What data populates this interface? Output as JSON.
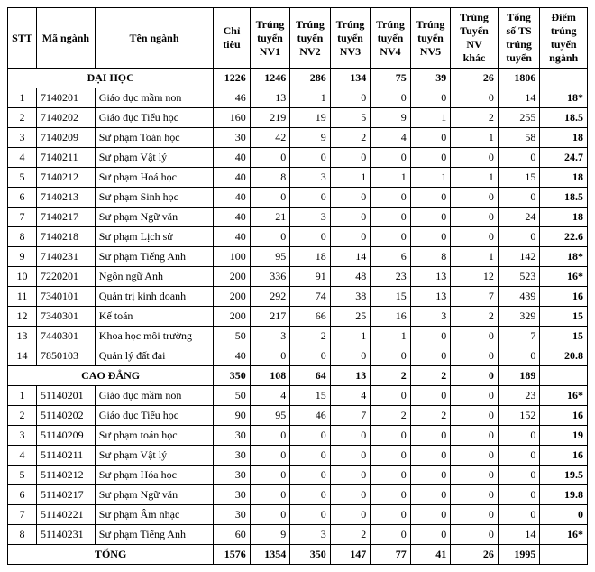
{
  "headers": {
    "stt": "STT",
    "ma": "Mã ngành",
    "ten": "Tên ngành",
    "chi": "Chỉ tiêu",
    "nv1": "Trúng tuyển NV1",
    "nv2": "Trúng tuyển NV2",
    "nv3": "Trúng tuyển NV3",
    "nv4": "Trúng tuyển NV4",
    "nv5": "Trúng tuyển NV5",
    "nvk": "Trúng Tuyển NV khác",
    "tong": "Tổng số TS trúng tuyển",
    "diem": "Điểm trúng tuyển ngành"
  },
  "section1": {
    "label": "ĐẠI HỌC",
    "chi": "1226",
    "nv1": "1246",
    "nv2": "286",
    "nv3": "134",
    "nv4": "75",
    "nv5": "39",
    "nvk": "26",
    "tong": "1806",
    "diem": ""
  },
  "dh": [
    {
      "stt": "1",
      "ma": "7140201",
      "ten": "Giáo dục mầm non",
      "chi": "46",
      "nv1": "13",
      "nv2": "1",
      "nv3": "0",
      "nv4": "0",
      "nv5": "0",
      "nvk": "0",
      "tong": "14",
      "diem": "18*"
    },
    {
      "stt": "2",
      "ma": "7140202",
      "ten": "Giáo dục Tiểu học",
      "chi": "160",
      "nv1": "219",
      "nv2": "19",
      "nv3": "5",
      "nv4": "9",
      "nv5": "1",
      "nvk": "2",
      "tong": "255",
      "diem": "18.5"
    },
    {
      "stt": "3",
      "ma": "7140209",
      "ten": "Sư phạm Toán học",
      "chi": "30",
      "nv1": "42",
      "nv2": "9",
      "nv3": "2",
      "nv4": "4",
      "nv5": "0",
      "nvk": "1",
      "tong": "58",
      "diem": "18"
    },
    {
      "stt": "4",
      "ma": "7140211",
      "ten": "Sư phạm Vật lý",
      "chi": "40",
      "nv1": "0",
      "nv2": "0",
      "nv3": "0",
      "nv4": "0",
      "nv5": "0",
      "nvk": "0",
      "tong": "0",
      "diem": "24.7"
    },
    {
      "stt": "5",
      "ma": "7140212",
      "ten": "Sư phạm Hoá học",
      "chi": "40",
      "nv1": "8",
      "nv2": "3",
      "nv3": "1",
      "nv4": "1",
      "nv5": "1",
      "nvk": "1",
      "tong": "15",
      "diem": "18"
    },
    {
      "stt": "6",
      "ma": "7140213",
      "ten": "Sư phạm Sinh học",
      "chi": "40",
      "nv1": "0",
      "nv2": "0",
      "nv3": "0",
      "nv4": "0",
      "nv5": "0",
      "nvk": "0",
      "tong": "0",
      "diem": "18.5"
    },
    {
      "stt": "7",
      "ma": "7140217",
      "ten": "Sư phạm Ngữ văn",
      "chi": "40",
      "nv1": "21",
      "nv2": "3",
      "nv3": "0",
      "nv4": "0",
      "nv5": "0",
      "nvk": "0",
      "tong": "24",
      "diem": "18"
    },
    {
      "stt": "8",
      "ma": "7140218",
      "ten": "Sư phạm Lịch sử",
      "chi": "40",
      "nv1": "0",
      "nv2": "0",
      "nv3": "0",
      "nv4": "0",
      "nv5": "0",
      "nvk": "0",
      "tong": "0",
      "diem": "22.6"
    },
    {
      "stt": "9",
      "ma": "7140231",
      "ten": "Sư phạm Tiếng Anh",
      "chi": "100",
      "nv1": "95",
      "nv2": "18",
      "nv3": "14",
      "nv4": "6",
      "nv5": "8",
      "nvk": "1",
      "tong": "142",
      "diem": "18*"
    },
    {
      "stt": "10",
      "ma": "7220201",
      "ten": "Ngôn ngữ Anh",
      "chi": "200",
      "nv1": "336",
      "nv2": "91",
      "nv3": "48",
      "nv4": "23",
      "nv5": "13",
      "nvk": "12",
      "tong": "523",
      "diem": "16*"
    },
    {
      "stt": "11",
      "ma": "7340101",
      "ten": "Quản trị kinh doanh",
      "chi": "200",
      "nv1": "292",
      "nv2": "74",
      "nv3": "38",
      "nv4": "15",
      "nv5": "13",
      "nvk": "7",
      "tong": "439",
      "diem": "16"
    },
    {
      "stt": "12",
      "ma": "7340301",
      "ten": "Kế toán",
      "chi": "200",
      "nv1": "217",
      "nv2": "66",
      "nv3": "25",
      "nv4": "16",
      "nv5": "3",
      "nvk": "2",
      "tong": "329",
      "diem": "15"
    },
    {
      "stt": "13",
      "ma": "7440301",
      "ten": "Khoa học môi trường",
      "chi": "50",
      "nv1": "3",
      "nv2": "2",
      "nv3": "1",
      "nv4": "1",
      "nv5": "0",
      "nvk": "0",
      "tong": "7",
      "diem": "15"
    },
    {
      "stt": "14",
      "ma": "7850103",
      "ten": "Quản lý đất đai",
      "chi": "40",
      "nv1": "0",
      "nv2": "0",
      "nv3": "0",
      "nv4": "0",
      "nv5": "0",
      "nvk": "0",
      "tong": "0",
      "diem": "20.8"
    }
  ],
  "section2": {
    "label": "CAO ĐẲNG",
    "chi": "350",
    "nv1": "108",
    "nv2": "64",
    "nv3": "13",
    "nv4": "2",
    "nv5": "2",
    "nvk": "0",
    "tong": "189",
    "diem": ""
  },
  "cd": [
    {
      "stt": "1",
      "ma": "51140201",
      "ten": "Giáo dục mầm non",
      "chi": "50",
      "nv1": "4",
      "nv2": "15",
      "nv3": "4",
      "nv4": "0",
      "nv5": "0",
      "nvk": "0",
      "tong": "23",
      "diem": "16*"
    },
    {
      "stt": "2",
      "ma": "51140202",
      "ten": "Giáo dục Tiểu học",
      "chi": "90",
      "nv1": "95",
      "nv2": "46",
      "nv3": "7",
      "nv4": "2",
      "nv5": "2",
      "nvk": "0",
      "tong": "152",
      "diem": "16"
    },
    {
      "stt": "3",
      "ma": "51140209",
      "ten": "Sư phạm toán học",
      "chi": "30",
      "nv1": "0",
      "nv2": "0",
      "nv3": "0",
      "nv4": "0",
      "nv5": "0",
      "nvk": "0",
      "tong": "0",
      "diem": "19"
    },
    {
      "stt": "4",
      "ma": "51140211",
      "ten": "Sư phạm Vật lý",
      "chi": "30",
      "nv1": "0",
      "nv2": "0",
      "nv3": "0",
      "nv4": "0",
      "nv5": "0",
      "nvk": "0",
      "tong": "0",
      "diem": "16"
    },
    {
      "stt": "5",
      "ma": "51140212",
      "ten": "Sư phạm Hóa học",
      "chi": "30",
      "nv1": "0",
      "nv2": "0",
      "nv3": "0",
      "nv4": "0",
      "nv5": "0",
      "nvk": "0",
      "tong": "0",
      "diem": "19.5"
    },
    {
      "stt": "6",
      "ma": "51140217",
      "ten": "Sư phạm Ngữ văn",
      "chi": "30",
      "nv1": "0",
      "nv2": "0",
      "nv3": "0",
      "nv4": "0",
      "nv5": "0",
      "nvk": "0",
      "tong": "0",
      "diem": "19.8"
    },
    {
      "stt": "7",
      "ma": "51140221",
      "ten": "Sư phạm Âm nhạc",
      "chi": "30",
      "nv1": "0",
      "nv2": "0",
      "nv3": "0",
      "nv4": "0",
      "nv5": "0",
      "nvk": "0",
      "tong": "0",
      "diem": "0"
    },
    {
      "stt": "8",
      "ma": "51140231",
      "ten": "Sư phạm Tiếng Anh",
      "chi": "60",
      "nv1": "9",
      "nv2": "3",
      "nv3": "2",
      "nv4": "0",
      "nv5": "0",
      "nvk": "0",
      "tong": "14",
      "diem": "16*"
    }
  ],
  "total": {
    "label": "TỔNG",
    "chi": "1576",
    "nv1": "1354",
    "nv2": "350",
    "nv3": "147",
    "nv4": "77",
    "nv5": "41",
    "nvk": "26",
    "tong": "1995",
    "diem": ""
  },
  "col_widths": {
    "stt": 28,
    "ma": 64,
    "ten": 130,
    "chi": 40,
    "nv": 44,
    "nvk": 52,
    "tong": 46,
    "diem": 52
  }
}
